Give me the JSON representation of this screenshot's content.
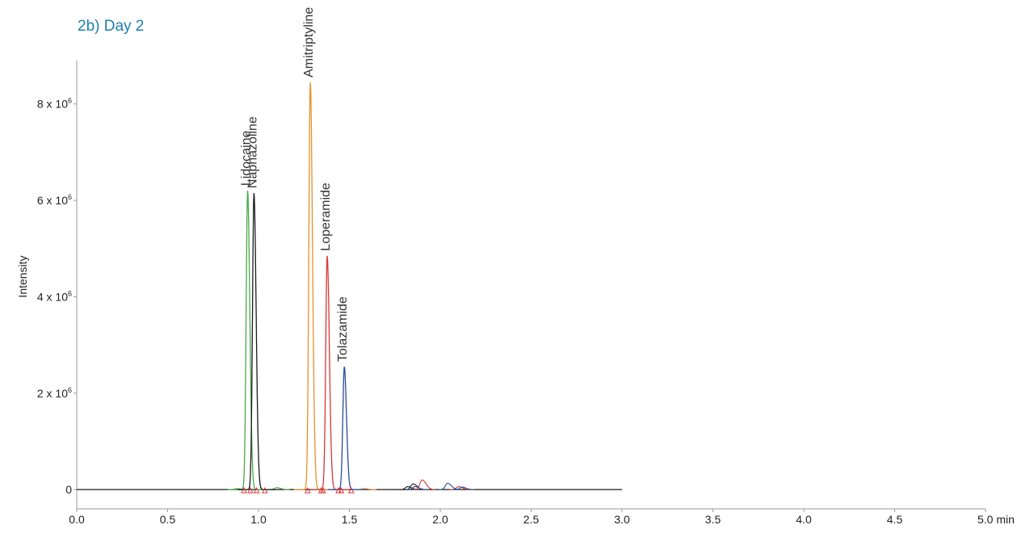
{
  "figure_title": "2b) Day 2",
  "chart_data": {
    "type": "line",
    "title": "2b) Day 2",
    "xlabel": "min",
    "ylabel": "Intensity",
    "xlim": [
      0,
      5.0
    ],
    "ylim": [
      -400000,
      8900000
    ],
    "x_ticks": [
      {
        "value": 0.0,
        "label": "0.0"
      },
      {
        "value": 0.5,
        "label": "0.5"
      },
      {
        "value": 1.0,
        "label": "1.0"
      },
      {
        "value": 1.5,
        "label": "1.5"
      },
      {
        "value": 2.0,
        "label": "2.0"
      },
      {
        "value": 2.5,
        "label": "2.5"
      },
      {
        "value": 3.0,
        "label": "3.0"
      },
      {
        "value": 3.5,
        "label": "3.5"
      },
      {
        "value": 4.0,
        "label": "4.0"
      },
      {
        "value": 4.5,
        "label": "4.5"
      },
      {
        "value": 5.0,
        "label": "5.0 min"
      }
    ],
    "y_ticks": [
      {
        "value": 0,
        "label": "0"
      },
      {
        "value": 2000000,
        "label": "2 x 10",
        "exp": "6"
      },
      {
        "value": 4000000,
        "label": "4 x 10",
        "exp": "6"
      },
      {
        "value": 6000000,
        "label": "6 x 10",
        "exp": "6"
      },
      {
        "value": 8000000,
        "label": "8 x 10",
        "exp": "6"
      }
    ],
    "data_end_x": 3.0,
    "grid": false,
    "series": [
      {
        "name": "Lidocaine",
        "color": "#4aa84a",
        "rt": 0.94,
        "height": 6200000,
        "width": 0.008,
        "minor": [
          [
            1.1,
            40000
          ],
          [
            0.88,
            20000
          ]
        ]
      },
      {
        "name": "Naphazoline",
        "color": "#1a1a1a",
        "rt": 0.975,
        "height": 6150000,
        "width": 0.008,
        "minor": [
          [
            1.85,
            120000
          ],
          [
            1.82,
            60000
          ]
        ]
      },
      {
        "name": "Amitriptyline",
        "color": "#e8902a",
        "rt": 1.285,
        "height": 8450000,
        "width": 0.008,
        "minor": [
          [
            1.58,
            20000
          ]
        ]
      },
      {
        "name": "Loperamide",
        "color": "#d93636",
        "rt": 1.378,
        "height": 4850000,
        "width": 0.008,
        "minor": [
          [
            1.9,
            200000
          ],
          [
            2.1,
            60000
          ]
        ]
      },
      {
        "name": "Tolazamide",
        "color": "#2a4d9c",
        "rt": 1.472,
        "height": 2550000,
        "width": 0.008,
        "minor": [
          [
            2.04,
            130000
          ],
          [
            1.86,
            60000
          ],
          [
            2.12,
            50000
          ]
        ]
      }
    ],
    "markers": {
      "shape": "triangle",
      "color": "#d93636",
      "x": [
        0.92,
        0.955,
        0.99,
        1.035,
        1.27,
        1.345,
        1.355,
        1.44,
        1.455,
        1.51
      ]
    }
  }
}
